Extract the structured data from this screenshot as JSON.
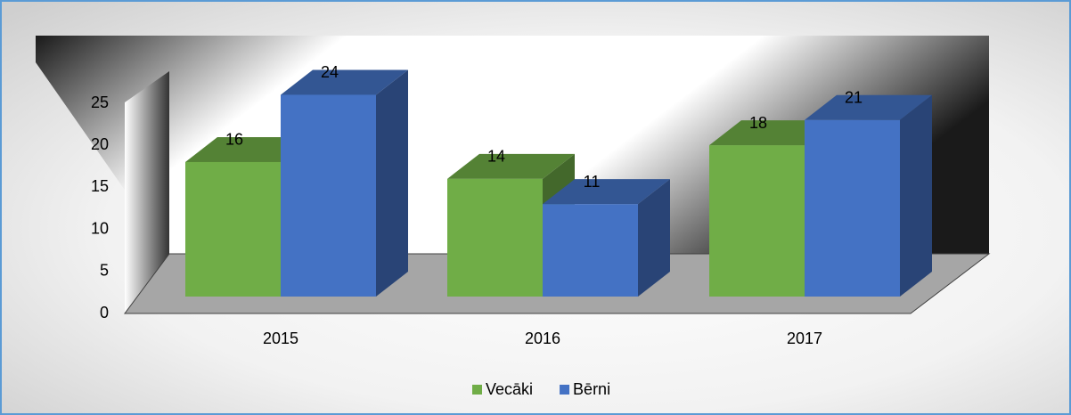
{
  "chart_data": {
    "type": "bar3d",
    "categories": [
      "2015",
      "2016",
      "2017"
    ],
    "series": [
      {
        "name": "Vecāki",
        "color": "#70ad47",
        "values": [
          16,
          14,
          18
        ]
      },
      {
        "name": "Bērni",
        "color": "#4472c4",
        "values": [
          24,
          11,
          21
        ]
      }
    ],
    "ylim": [
      0,
      25
    ],
    "yticks": [
      0,
      5,
      10,
      15,
      20,
      25
    ],
    "legend": "bottom"
  }
}
